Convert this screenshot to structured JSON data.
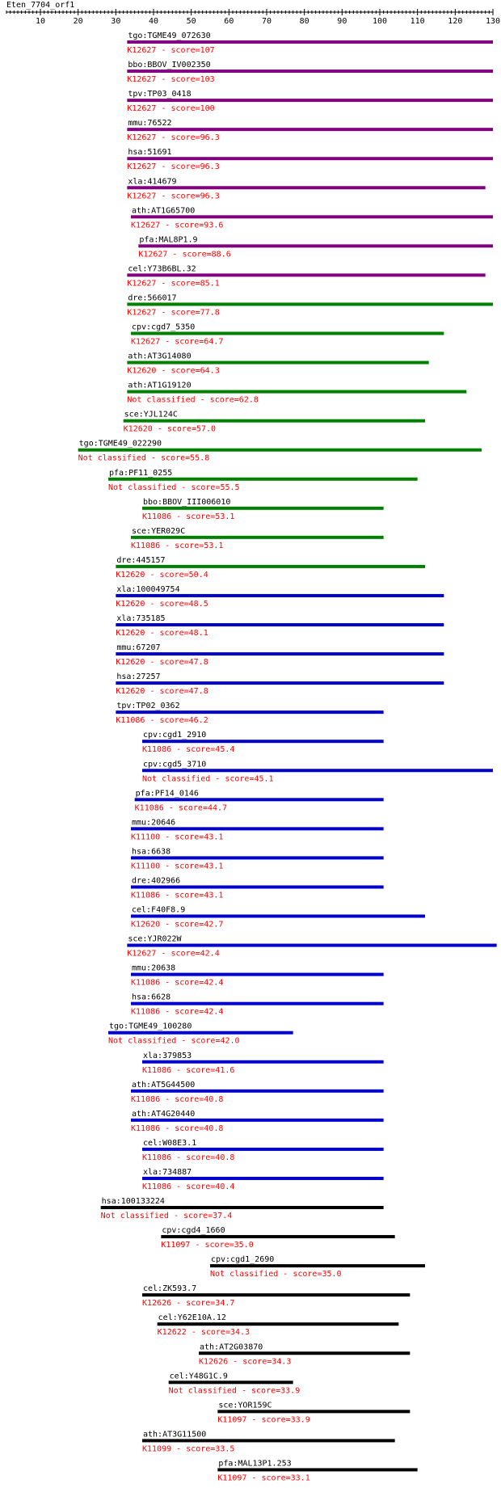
{
  "title": "Eten_7704_orf1",
  "axis": {
    "min": 1,
    "max": 130,
    "tick_labels": [
      "10",
      "20",
      "30",
      "40",
      "50",
      "60",
      "70",
      "80",
      "90",
      "100",
      "110",
      "120",
      "130"
    ],
    "tick_values": [
      10,
      20,
      30,
      40,
      50,
      60,
      70,
      80,
      90,
      100,
      110,
      120,
      130
    ]
  },
  "colors": {
    "purple": "#800080",
    "green": "#008000",
    "blue": "#0000cc",
    "black": "#000000",
    "score_text": "#ff0000",
    "label_text": "#000000"
  },
  "chart_data": {
    "type": "gantt",
    "title": "Eten_7704_orf1",
    "x_range": [
      1,
      130
    ],
    "hits": [
      {
        "gene": "tgo:TGME49_072630",
        "ko": "K12627 - score=107",
        "start": 33,
        "end": 130,
        "color": "purple"
      },
      {
        "gene": "bbo:BBOV_IV002350",
        "ko": "K12627 - score=103",
        "start": 33,
        "end": 130,
        "color": "purple"
      },
      {
        "gene": "tpv:TP03_0418",
        "ko": "K12627 - score=100",
        "start": 33,
        "end": 130,
        "color": "purple"
      },
      {
        "gene": "mmu:76522",
        "ko": "K12627 - score=96.3",
        "start": 33,
        "end": 130,
        "color": "purple"
      },
      {
        "gene": "hsa:51691",
        "ko": "K12627 - score=96.3",
        "start": 33,
        "end": 130,
        "color": "purple"
      },
      {
        "gene": "xla:414679",
        "ko": "K12627 - score=96.3",
        "start": 33,
        "end": 128,
        "color": "purple"
      },
      {
        "gene": "ath:AT1G65700",
        "ko": "K12627 - score=93.6",
        "start": 34,
        "end": 130,
        "color": "purple"
      },
      {
        "gene": "pfa:MAL8P1.9",
        "ko": "K12627 - score=88.6",
        "start": 36,
        "end": 130,
        "color": "purple"
      },
      {
        "gene": "cel:Y73B6BL.32",
        "ko": "K12627 - score=85.1",
        "start": 33,
        "end": 128,
        "color": "purple"
      },
      {
        "gene": "dre:566017",
        "ko": "K12627 - score=77.8",
        "start": 33,
        "end": 130,
        "color": "green"
      },
      {
        "gene": "cpv:cgd7_5350",
        "ko": "K12627 - score=64.7",
        "start": 34,
        "end": 117,
        "color": "green"
      },
      {
        "gene": "ath:AT3G14080",
        "ko": "K12620 - score=64.3",
        "start": 33,
        "end": 113,
        "color": "green"
      },
      {
        "gene": "ath:AT1G19120",
        "ko": "Not classified - score=62.8",
        "start": 33,
        "end": 123,
        "color": "green"
      },
      {
        "gene": "sce:YJL124C",
        "ko": "K12620 - score=57.0",
        "start": 32,
        "end": 112,
        "color": "green"
      },
      {
        "gene": "tgo:TGME49_022290",
        "ko": "Not classified - score=55.8",
        "start": 20,
        "end": 127,
        "color": "green"
      },
      {
        "gene": "pfa:PF11_0255",
        "ko": "Not classified - score=55.5",
        "start": 28,
        "end": 110,
        "color": "green"
      },
      {
        "gene": "bbo:BBOV_III006010",
        "ko": "K11086 - score=53.1",
        "start": 37,
        "end": 101,
        "color": "green"
      },
      {
        "gene": "sce:YER029C",
        "ko": "K11086 - score=53.1",
        "start": 34,
        "end": 101,
        "color": "green"
      },
      {
        "gene": "dre:445157",
        "ko": "K12620 - score=50.4",
        "start": 30,
        "end": 112,
        "color": "green"
      },
      {
        "gene": "xla:100049754",
        "ko": "K12620 - score=48.5",
        "start": 30,
        "end": 117,
        "color": "blue"
      },
      {
        "gene": "xla:735185",
        "ko": "K12620 - score=48.1",
        "start": 30,
        "end": 117,
        "color": "blue"
      },
      {
        "gene": "mmu:67207",
        "ko": "K12620 - score=47.8",
        "start": 30,
        "end": 117,
        "color": "blue"
      },
      {
        "gene": "hsa:27257",
        "ko": "K12620 - score=47.8",
        "start": 30,
        "end": 117,
        "color": "blue"
      },
      {
        "gene": "tpv:TP02_0362",
        "ko": "K11086 - score=46.2",
        "start": 30,
        "end": 101,
        "color": "blue"
      },
      {
        "gene": "cpv:cgd1_2910",
        "ko": "K11086 - score=45.4",
        "start": 37,
        "end": 101,
        "color": "blue"
      },
      {
        "gene": "cpv:cgd5_3710",
        "ko": "Not classified - score=45.1",
        "start": 37,
        "end": 130,
        "color": "blue"
      },
      {
        "gene": "pfa:PF14_0146",
        "ko": "K11086 - score=44.7",
        "start": 35,
        "end": 101,
        "color": "blue"
      },
      {
        "gene": "mmu:20646",
        "ko": "K11100 - score=43.1",
        "start": 34,
        "end": 101,
        "color": "blue"
      },
      {
        "gene": "hsa:6638",
        "ko": "K11100 - score=43.1",
        "start": 34,
        "end": 101,
        "color": "blue"
      },
      {
        "gene": "dre:402966",
        "ko": "K11086 - score=43.1",
        "start": 34,
        "end": 101,
        "color": "blue"
      },
      {
        "gene": "cel:F40F8.9",
        "ko": "K12620 - score=42.7",
        "start": 34,
        "end": 112,
        "color": "blue"
      },
      {
        "gene": "sce:YJR022W",
        "ko": "K12627 - score=42.4",
        "start": 33,
        "end": 131,
        "color": "blue"
      },
      {
        "gene": "mmu:20638",
        "ko": "K11086 - score=42.4",
        "start": 34,
        "end": 101,
        "color": "blue"
      },
      {
        "gene": "hsa:6628",
        "ko": "K11086 - score=42.4",
        "start": 34,
        "end": 101,
        "color": "blue"
      },
      {
        "gene": "tgo:TGME49_100280",
        "ko": "Not classified - score=42.0",
        "start": 28,
        "end": 77,
        "color": "blue"
      },
      {
        "gene": "xla:379853",
        "ko": "K11086 - score=41.6",
        "start": 37,
        "end": 101,
        "color": "blue"
      },
      {
        "gene": "ath:AT5G44500",
        "ko": "K11086 - score=40.8",
        "start": 34,
        "end": 101,
        "color": "blue"
      },
      {
        "gene": "ath:AT4G20440",
        "ko": "K11086 - score=40.8",
        "start": 34,
        "end": 101,
        "color": "blue"
      },
      {
        "gene": "cel:W08E3.1",
        "ko": "K11086 - score=40.8",
        "start": 37,
        "end": 101,
        "color": "blue"
      },
      {
        "gene": "xla:734887",
        "ko": "K11086 - score=40.4",
        "start": 37,
        "end": 101,
        "color": "blue"
      },
      {
        "gene": "hsa:100133224",
        "ko": "Not classified - score=37.4",
        "start": 26,
        "end": 101,
        "color": "black"
      },
      {
        "gene": "cpv:cgd4_1660",
        "ko": "K11097 - score=35.0",
        "start": 42,
        "end": 104,
        "color": "black"
      },
      {
        "gene": "cpv:cgd1_2690",
        "ko": "Not classified - score=35.0",
        "start": 55,
        "end": 112,
        "color": "black"
      },
      {
        "gene": "cel:ZK593.7",
        "ko": "K12626 - score=34.7",
        "start": 37,
        "end": 108,
        "color": "black"
      },
      {
        "gene": "cel:Y62E10A.12",
        "ko": "K12622 - score=34.3",
        "start": 41,
        "end": 105,
        "color": "black"
      },
      {
        "gene": "ath:AT2G03870",
        "ko": "K12626 - score=34.3",
        "start": 52,
        "end": 108,
        "color": "black"
      },
      {
        "gene": "cel:Y48G1C.9",
        "ko": "Not classified - score=33.9",
        "start": 44,
        "end": 77,
        "color": "black"
      },
      {
        "gene": "sce:YOR159C",
        "ko": "K11097 - score=33.9",
        "start": 57,
        "end": 108,
        "color": "black"
      },
      {
        "gene": "ath:AT3G11500",
        "ko": "K11099 - score=33.5",
        "start": 37,
        "end": 104,
        "color": "black"
      },
      {
        "gene": "pfa:MAL13P1.253",
        "ko": "K11097 - score=33.1",
        "start": 57,
        "end": 110,
        "color": "black"
      }
    ]
  }
}
